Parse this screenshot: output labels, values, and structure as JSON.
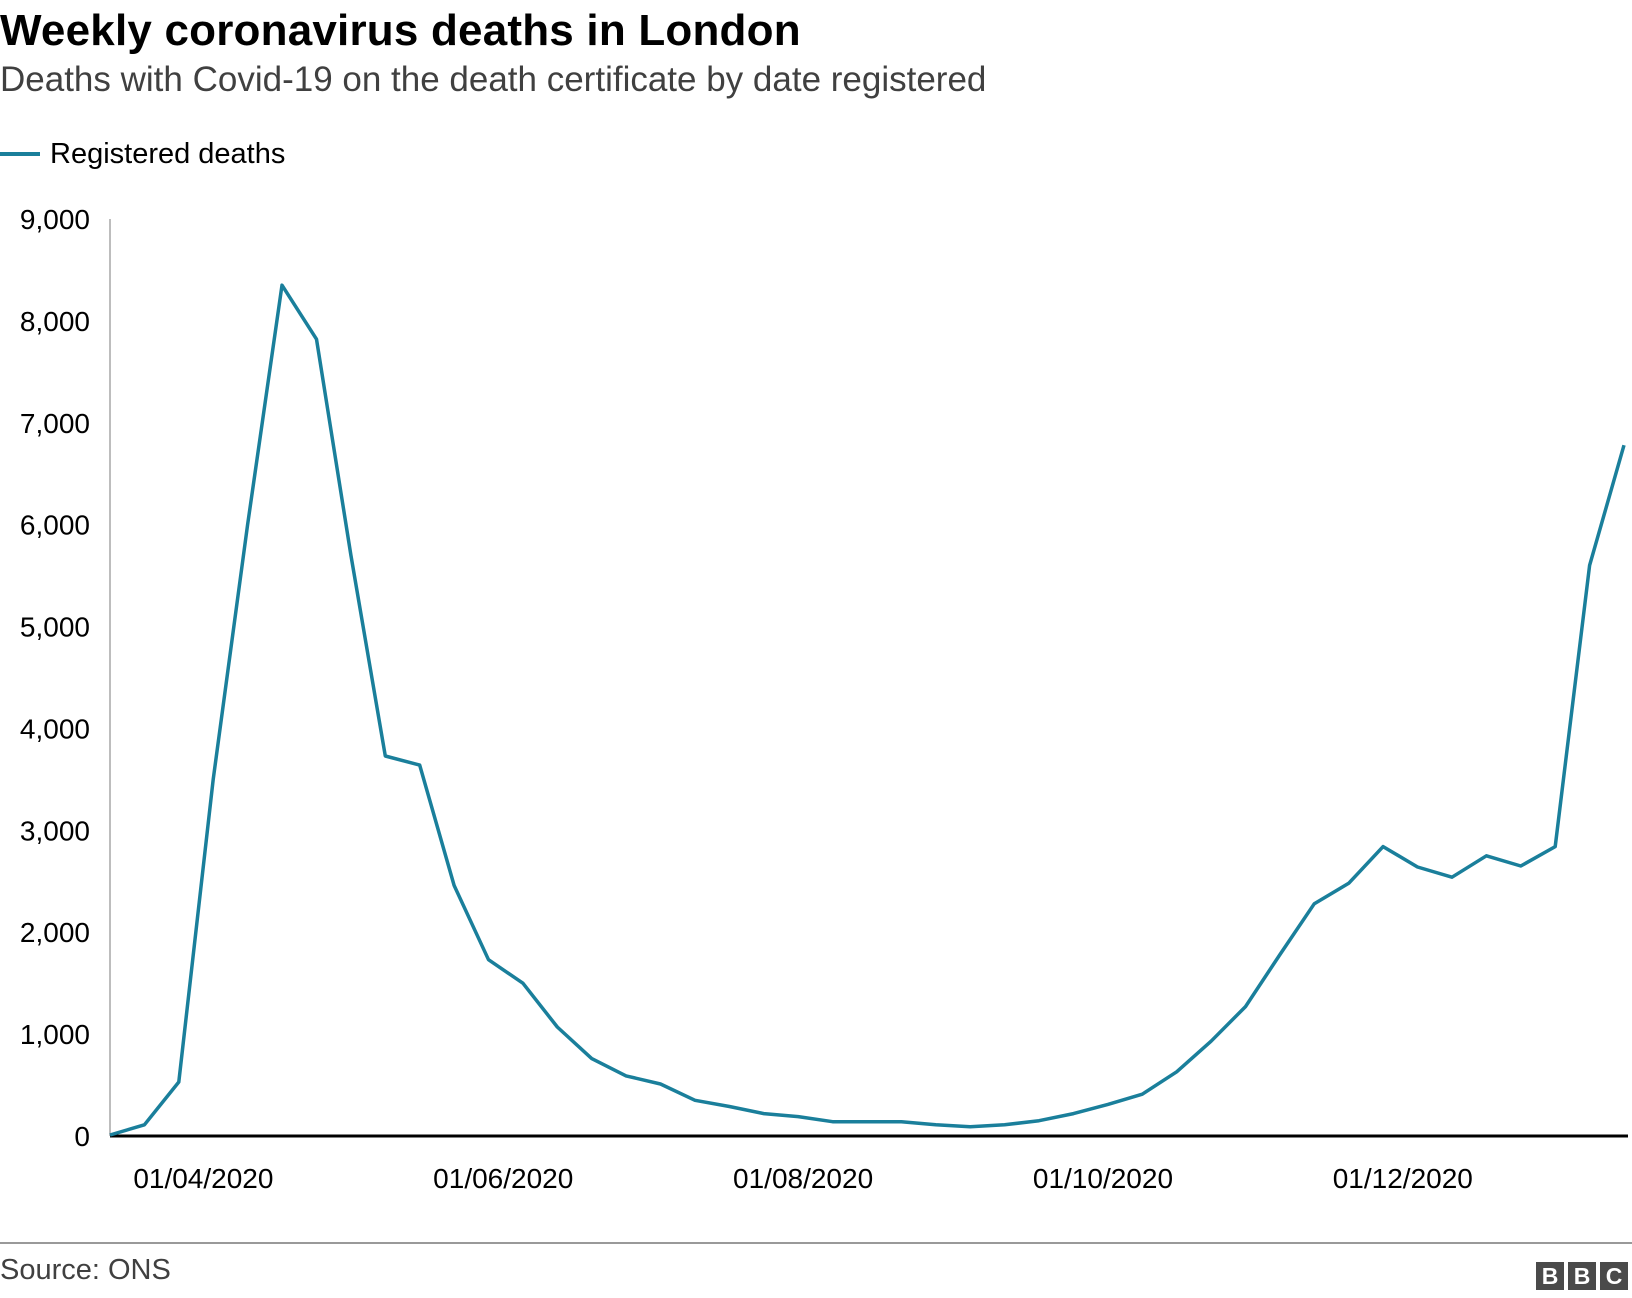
{
  "header": {
    "title": "Weekly coronavirus deaths in London",
    "subtitle": "Deaths with Covid-19 on the death certificate by date registered"
  },
  "legend": {
    "label": "Registered deaths",
    "color": "#1a7f9b"
  },
  "footer": {
    "source": "Source: ONS",
    "logo": [
      "B",
      "B",
      "C"
    ]
  },
  "chart_data": {
    "type": "line",
    "title": "Weekly coronavirus deaths in London",
    "subtitle": "Deaths with Covid-19 on the death certificate by date registered",
    "xlabel": "",
    "ylabel": "",
    "ylim": [
      0,
      9000
    ],
    "yticks": [
      0,
      1000,
      2000,
      3000,
      4000,
      5000,
      6000,
      7000,
      8000,
      9000
    ],
    "ytick_labels": [
      "0",
      "1,000",
      "2,000",
      "3,000",
      "4,000",
      "5,000",
      "6,000",
      "7,000",
      "8,000",
      "9,000"
    ],
    "xticks": [
      "2020-04-01",
      "2020-06-01",
      "2020-08-01",
      "2020-10-01",
      "2020-12-01"
    ],
    "xtick_labels": [
      "01/04/2020",
      "01/06/2020",
      "01/08/2020",
      "01/10/2020",
      "01/12/2020"
    ],
    "grid": false,
    "legend_position": "top-left",
    "series": [
      {
        "name": "Registered deaths",
        "color": "#1a7f9b",
        "x": [
          "2020-03-13",
          "2020-03-20",
          "2020-03-27",
          "2020-04-03",
          "2020-04-10",
          "2020-04-17",
          "2020-04-24",
          "2020-05-01",
          "2020-05-08",
          "2020-05-15",
          "2020-05-22",
          "2020-05-29",
          "2020-06-05",
          "2020-06-12",
          "2020-06-19",
          "2020-06-26",
          "2020-07-03",
          "2020-07-10",
          "2020-07-17",
          "2020-07-24",
          "2020-07-31",
          "2020-08-07",
          "2020-08-14",
          "2020-08-21",
          "2020-08-28",
          "2020-09-04",
          "2020-09-11",
          "2020-09-18",
          "2020-09-25",
          "2020-10-02",
          "2020-10-09",
          "2020-10-16",
          "2020-10-23",
          "2020-10-30",
          "2020-11-06",
          "2020-11-13",
          "2020-11-20",
          "2020-11-27",
          "2020-12-04",
          "2020-12-11",
          "2020-12-18",
          "2020-12-25",
          "2021-01-01",
          "2021-01-08",
          "2021-01-15"
        ],
        "y": [
          10,
          110,
          530,
          3500,
          6000,
          8350,
          7820,
          5700,
          3730,
          3640,
          2460,
          1730,
          1500,
          1070,
          760,
          590,
          510,
          350,
          290,
          220,
          190,
          140,
          140,
          140,
          110,
          90,
          110,
          150,
          220,
          310,
          410,
          630,
          930,
          1270,
          1780,
          2280,
          2480,
          2840,
          2640,
          2540,
          2750,
          2650,
          2840,
          5600,
          6780
        ]
      }
    ]
  }
}
